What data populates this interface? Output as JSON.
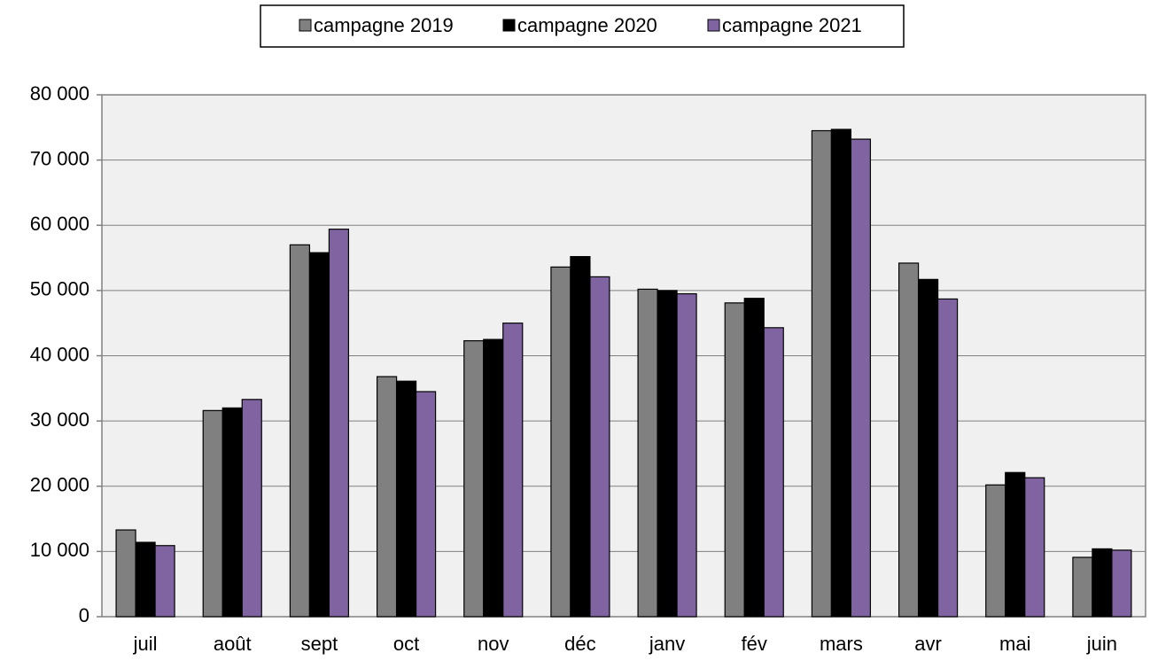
{
  "chart_data": {
    "type": "bar",
    "categories": [
      "juil",
      "août",
      "sept",
      "oct",
      "nov",
      "déc",
      "janv",
      "fév",
      "mars",
      "avr",
      "mai",
      "juin"
    ],
    "series": [
      {
        "name": "campagne 2019",
        "color": "#808080",
        "values": [
          13300,
          31600,
          57000,
          36800,
          42300,
          53600,
          50200,
          48100,
          74500,
          54200,
          20200,
          9100
        ]
      },
      {
        "name": "campagne 2020",
        "color": "#000000",
        "values": [
          11400,
          32000,
          55800,
          36100,
          42500,
          55200,
          50000,
          48800,
          74700,
          51700,
          22100,
          10400
        ]
      },
      {
        "name": "campagne 2021",
        "color": "#8064a2",
        "values": [
          10900,
          33300,
          59400,
          34500,
          45000,
          52100,
          49500,
          44300,
          73200,
          48700,
          21300,
          10200
        ]
      }
    ],
    "ylim": [
      0,
      80000
    ],
    "yticks": [
      0,
      {
        "value": 10000,
        "label": "10 000"
      },
      {
        "value": 20000,
        "label": "20 000"
      },
      {
        "value": 30000,
        "label": "30 000"
      },
      {
        "value": 40000,
        "label": "40 000"
      },
      {
        "value": 50000,
        "label": "50 000"
      },
      {
        "value": 60000,
        "label": "60 000"
      },
      {
        "value": 70000,
        "label": "70 000"
      },
      {
        "value": 80000,
        "label": "80 000"
      }
    ],
    "grid": true,
    "legend": "top"
  }
}
